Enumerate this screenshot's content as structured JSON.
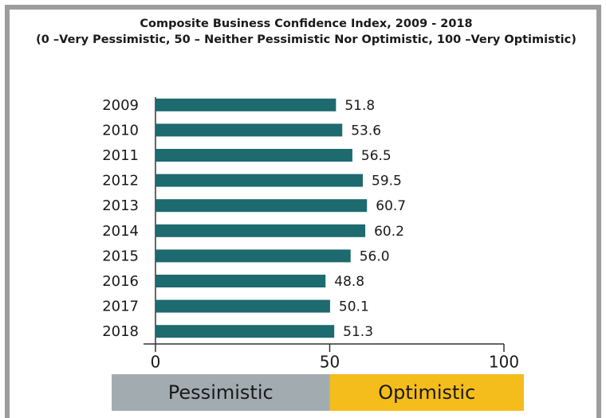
{
  "chart_data": {
    "type": "bar",
    "orientation": "horizontal",
    "title": "Composite Business Confidence Index, 2009 - 2018",
    "subtitle": "(0 –Very Pessimistic, 50 – Neither Pessimistic Nor Optimistic, 100 –Very Optimistic)",
    "categories": [
      "2009",
      "2010",
      "2011",
      "2012",
      "2013",
      "2014",
      "2015",
      "2016",
      "2017",
      "2018"
    ],
    "values": [
      51.8,
      53.6,
      56.5,
      59.5,
      60.7,
      60.2,
      56.0,
      48.8,
      50.1,
      51.3
    ],
    "value_labels": [
      "51.8",
      "53.6",
      "56.5",
      "59.5",
      "60.7",
      "60.2",
      "56.0",
      "48.8",
      "50.1",
      "51.3"
    ],
    "color": "#1d6a6f",
    "xlim": [
      0,
      100
    ],
    "xticks": [
      0,
      50,
      100
    ],
    "zone_boundary": 50,
    "zones": [
      {
        "label": "Pessimistic",
        "color": "#a2acb0"
      },
      {
        "label": "Optimistic",
        "color": "#f4bd1c"
      }
    ]
  }
}
